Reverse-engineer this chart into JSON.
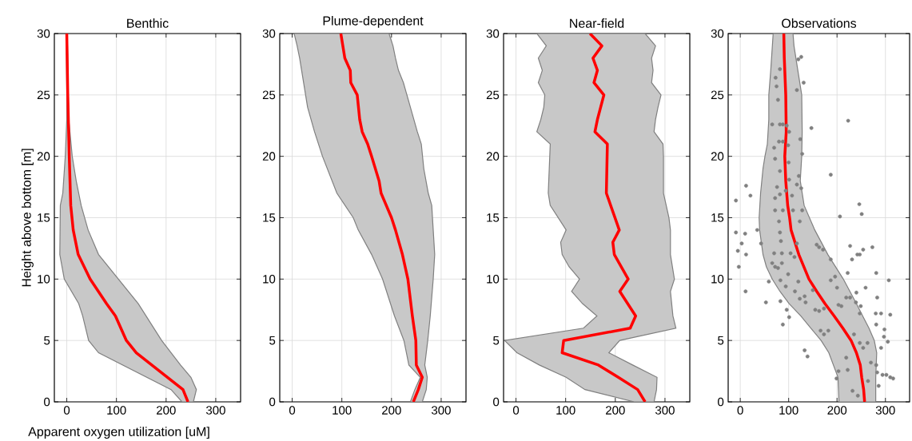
{
  "chart_data": [
    {
      "type": "line",
      "title": "Benthic",
      "xlabel": "Apparent oxygen utilization [uM]",
      "ylabel": "Height above bottom [m]",
      "xlim": [
        -25,
        350
      ],
      "xticks": [
        0,
        100,
        200,
        300
      ],
      "ylim": [
        0,
        30
      ],
      "yticks": [
        0,
        5,
        10,
        15,
        20,
        25,
        30
      ],
      "grid": true,
      "series": [
        {
          "type": "area",
          "color": "#c8c8c8",
          "x": [
            232,
            210,
            64,
            44,
            32,
            24,
            -5,
            -14,
            -13,
            -8,
            -3,
            0,
            0,
            -1,
            1,
            2,
            3,
            4,
            11,
            19,
            29,
            43,
            64,
            104,
            144,
            191,
            229,
            250,
            261,
            255
          ],
          "values": [
            0,
            1,
            4,
            5,
            7,
            8,
            10,
            12,
            16,
            17,
            20,
            23,
            25,
            30,
            30,
            28,
            25,
            23,
            20,
            18,
            16,
            14,
            12,
            10,
            8,
            5,
            3,
            2,
            1,
            0
          ]
        },
        {
          "color": "#ff0000",
          "x": [
            244,
            234,
            140,
            120,
            98,
            80,
            47,
            23,
            13,
            8,
            5,
            2,
            0
          ],
          "values": [
            0,
            1,
            4,
            5,
            7,
            8,
            10,
            12,
            14,
            16,
            20,
            25,
            30
          ]
        }
      ]
    },
    {
      "type": "line",
      "title": "Plume-dependent",
      "xlim": [
        -25,
        350
      ],
      "xticks": [
        0,
        100,
        200,
        300
      ],
      "ylim": [
        0,
        30
      ],
      "yticks": [
        0,
        5,
        10,
        15,
        20,
        25,
        30
      ],
      "grid": true,
      "series": [
        {
          "type": "area",
          "color": "#c8c8c8",
          "x": [
            238,
            247,
            258,
            235,
            225,
            206,
            182,
            160,
            133,
            123,
            90,
            61,
            45,
            31,
            23,
            15,
            10,
            4,
            195,
            203,
            208,
            214,
            224,
            238,
            252,
            260,
            265,
            274,
            281,
            284,
            287,
            284,
            278,
            273,
            267,
            272,
            270,
            262
          ],
          "values": [
            0,
            1,
            2,
            3,
            5,
            7,
            10,
            12,
            14,
            15,
            17,
            20,
            22,
            24,
            26,
            28,
            29,
            30,
            30,
            29,
            28,
            27,
            26,
            24,
            22,
            21,
            19,
            17,
            16,
            14,
            12,
            10,
            7,
            5,
            3,
            2,
            1,
            0
          ]
        },
        {
          "color": "#ff0000",
          "x": [
            244,
            254,
            262,
            250,
            249,
            242,
            233,
            222,
            208,
            200,
            179,
            175,
            160,
            152,
            141,
            136,
            131,
            118,
            117,
            106,
            98
          ],
          "values": [
            0,
            1,
            2,
            3,
            5,
            7,
            10,
            12,
            14,
            15,
            17,
            18,
            20,
            21,
            22,
            23,
            25,
            26,
            27,
            28,
            30
          ]
        }
      ]
    },
    {
      "type": "line",
      "title": "Near-field",
      "xlim": [
        -25,
        350
      ],
      "xticks": [
        0,
        100,
        200,
        300
      ],
      "ylim": [
        0,
        30
      ],
      "yticks": [
        0,
        5,
        10,
        15,
        20,
        25,
        30
      ],
      "grid": true,
      "series": [
        {
          "type": "area",
          "color": "#c8c8c8",
          "x": [
            238,
            139,
            101,
            47,
            2,
            -23,
            136,
            163,
            134,
            112,
            128,
            107,
            93,
            90,
            101,
            85,
            69,
            65,
            68,
            69,
            42,
            50,
            56,
            58,
            45,
            53,
            45,
            61,
            42,
            260,
            281,
            273,
            276,
            273,
            292,
            286,
            281,
            278,
            296,
            297,
            297,
            308,
            311,
            311,
            319,
            311,
            316,
            322,
            209,
            187,
            235,
            284,
            283,
            278
          ],
          "values": [
            0,
            1,
            2,
            3,
            4,
            5,
            6,
            7,
            8,
            9,
            10,
            11,
            12,
            13,
            14,
            15,
            16,
            17,
            20,
            21,
            22,
            23,
            24,
            25,
            26,
            27,
            28,
            29,
            30,
            30,
            29,
            28,
            27,
            26,
            25,
            24,
            23,
            22,
            21,
            20,
            17,
            15,
            14,
            12,
            10,
            9,
            7,
            6,
            5,
            4,
            3,
            2,
            1,
            0
          ]
        },
        {
          "color": "#ff0000",
          "x": [
            260,
            245,
            206,
            166,
            93,
            96,
            230,
            241,
            209,
            226,
            198,
            195,
            208,
            182,
            184,
            159,
            164,
            177,
            157,
            164,
            155,
            173,
            149
          ],
          "values": [
            0,
            1,
            2,
            3,
            4,
            5,
            6,
            7,
            9,
            10,
            12,
            13,
            14,
            17,
            21,
            22,
            23,
            25,
            26,
            27,
            28,
            29,
            30
          ]
        }
      ]
    },
    {
      "type": "line",
      "title": "Observations",
      "xlim": [
        -25,
        350
      ],
      "xticks": [
        0,
        100,
        200,
        300
      ],
      "ylim": [
        0,
        30
      ],
      "yticks": [
        0,
        5,
        10,
        15,
        20,
        25,
        30
      ],
      "grid": true,
      "series": [
        {
          "type": "area",
          "color": "#c8c8c8",
          "x": [
            204,
            202,
            183,
            167,
            146,
            125,
            101,
            82,
            66,
            54,
            47,
            40,
            39,
            42,
            47,
            51,
            56,
            59,
            59,
            63,
            68,
            109,
            111,
            119,
            127,
            128,
            127,
            124,
            132,
            154,
            181,
            213,
            240,
            253,
            266,
            277,
            282,
            280,
            280
          ],
          "values": [
            0,
            2,
            4,
            5,
            6,
            7,
            8,
            9,
            10,
            11,
            12,
            14,
            15,
            17,
            19,
            20,
            21,
            23,
            25,
            27,
            30,
            30,
            29,
            27,
            25,
            22,
            20,
            18,
            16,
            14,
            12,
            10,
            8,
            7,
            6,
            5,
            4,
            2,
            0
          ]
        },
        {
          "type": "scatter",
          "color": "#808080",
          "marker": "circle",
          "x": [
            -9,
            -9,
            -5,
            3,
            -3,
            10,
            12,
            12,
            21,
            11,
            35,
            43,
            59,
            53,
            66,
            70,
            72,
            78,
            72,
            72,
            76,
            82,
            70,
            66,
            72,
            75,
            73,
            82,
            78,
            82,
            88,
            80,
            88,
            96,
            101,
            99,
            100,
            82,
            101,
            94,
            88,
            80,
            82,
            84,
            86,
            86,
            83,
            83,
            88,
            94,
            96,
            101,
            99,
            104,
            112,
            117,
            109,
            107,
            117,
            121,
            126,
            123,
            128,
            120,
            126,
            131,
            117,
            124,
            128,
            120,
            113,
            123,
            133,
            135,
            133,
            139,
            147,
            150,
            155,
            163,
            158,
            163,
            171,
            173,
            166,
            173,
            182,
            187,
            187,
            187,
            196,
            200,
            203,
            209,
            206,
            199,
            203,
            219,
            222,
            219,
            227,
            223,
            227,
            231,
            235,
            222,
            242,
            247,
            246,
            251,
            254,
            240,
            239,
            249,
            247,
            247,
            254,
            263,
            259,
            270,
            264,
            273,
            281,
            283,
            280,
            291,
            281,
            298,
            297,
            305,
            291,
            307,
            310,
            281,
            283,
            294,
            302,
            310,
            316,
            286,
            232,
            243
          ],
          "values": [
            16.4,
            13.8,
            12.3,
            12.9,
            11.0,
            13.7,
            12.0,
            17.6,
            16.8,
            9.0,
            14.0,
            12.9,
            9.8,
            8.1,
            11.3,
            12.1,
            11.0,
            10.9,
            16.6,
            15.6,
            17.5,
            16.9,
            20.7,
            22.6,
            19.8,
            25.7,
            26.4,
            27.1,
            24.6,
            22.6,
            22.6,
            21.2,
            21.2,
            22.5,
            22.0,
            20.9,
            19.5,
            18.8,
            18.1,
            17.2,
            15.6,
            14.7,
            13.8,
            13.1,
            12.1,
            11.3,
            9.9,
            8.2,
            6.3,
            9.4,
            7.5,
            6.9,
            10.4,
            12.1,
            11.8,
            12.9,
            15.6,
            16.8,
            17.7,
            18.4,
            17.4,
            14.7,
            15.6,
            27.9,
            28.1,
            26.0,
            25.4,
            21.4,
            20.2,
            9.8,
            9.0,
            8.4,
            8.6,
            8.1,
            4.2,
            3.7,
            22.3,
            9.1,
            7.5,
            7.4,
            12.8,
            12.6,
            12.4,
            7.6,
            5.8,
            5.5,
            5.8,
            11.6,
            9.9,
            18.5,
            10.2,
            9.3,
            7.9,
            7.8,
            15.1,
            1.9,
            2.5,
            3.6,
            10.5,
            8.5,
            8.5,
            22.9,
            12.7,
            11.6,
            5.5,
            2.6,
            12.0,
            12.0,
            16.1,
            15.3,
            12.4,
            8.9,
            8.1,
            7.8,
            7.2,
            4.8,
            4.4,
            4.8,
            9.3,
            3.2,
            1.7,
            12.6,
            10.5,
            8.5,
            7.2,
            7.2,
            6.3,
            5.9,
            5.3,
            4.9,
            4.4,
            9.9,
            7.1,
            3.0,
            2.4,
            2.2,
            2.2,
            2.0,
            1.9,
            1.3,
            0.9,
            0.5
          ]
        },
        {
          "color": "#ff0000",
          "x": [
            257,
            255,
            251,
            248,
            240,
            229,
            212,
            194,
            175,
            158,
            142,
            121,
            105,
            102,
            98,
            94,
            92,
            95,
            94,
            91,
            90
          ],
          "values": [
            0,
            1,
            2,
            3,
            4,
            5,
            6,
            7,
            8,
            9,
            10,
            12,
            14,
            15,
            16,
            18,
            20,
            22,
            25,
            28,
            30
          ]
        }
      ]
    }
  ]
}
